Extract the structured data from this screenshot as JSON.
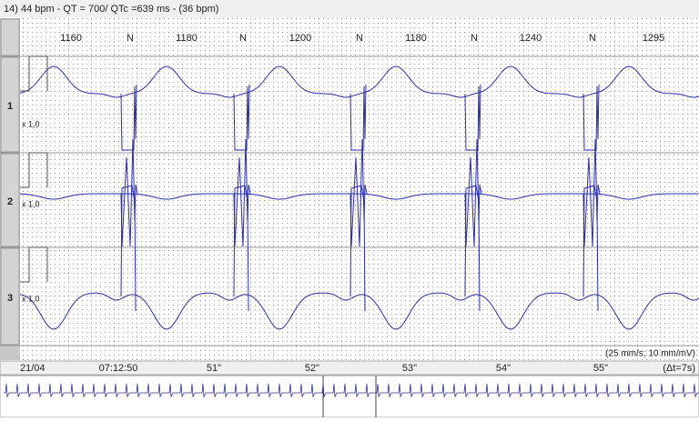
{
  "header": {
    "title": "14) 44 bpm - QT = 700/ QTc =639 ms - (36 bpm)"
  },
  "intervals": [
    "1160",
    "N",
    "1180",
    "N",
    "1200",
    "N",
    "1180",
    "N",
    "1240",
    "N",
    "1295"
  ],
  "leads": [
    {
      "name": "1",
      "gain": "x 1,0"
    },
    {
      "name": "2",
      "gain": "x 1,0"
    },
    {
      "name": "3",
      "gain": "x 1,0"
    }
  ],
  "speed": "(25 mm/s; 10 mm/mV)",
  "timebar": [
    "21/04",
    "07:12:50",
    "51\"",
    "52\"",
    "53\"",
    "54\"",
    "55\"",
    "(Δt=7s)"
  ]
}
